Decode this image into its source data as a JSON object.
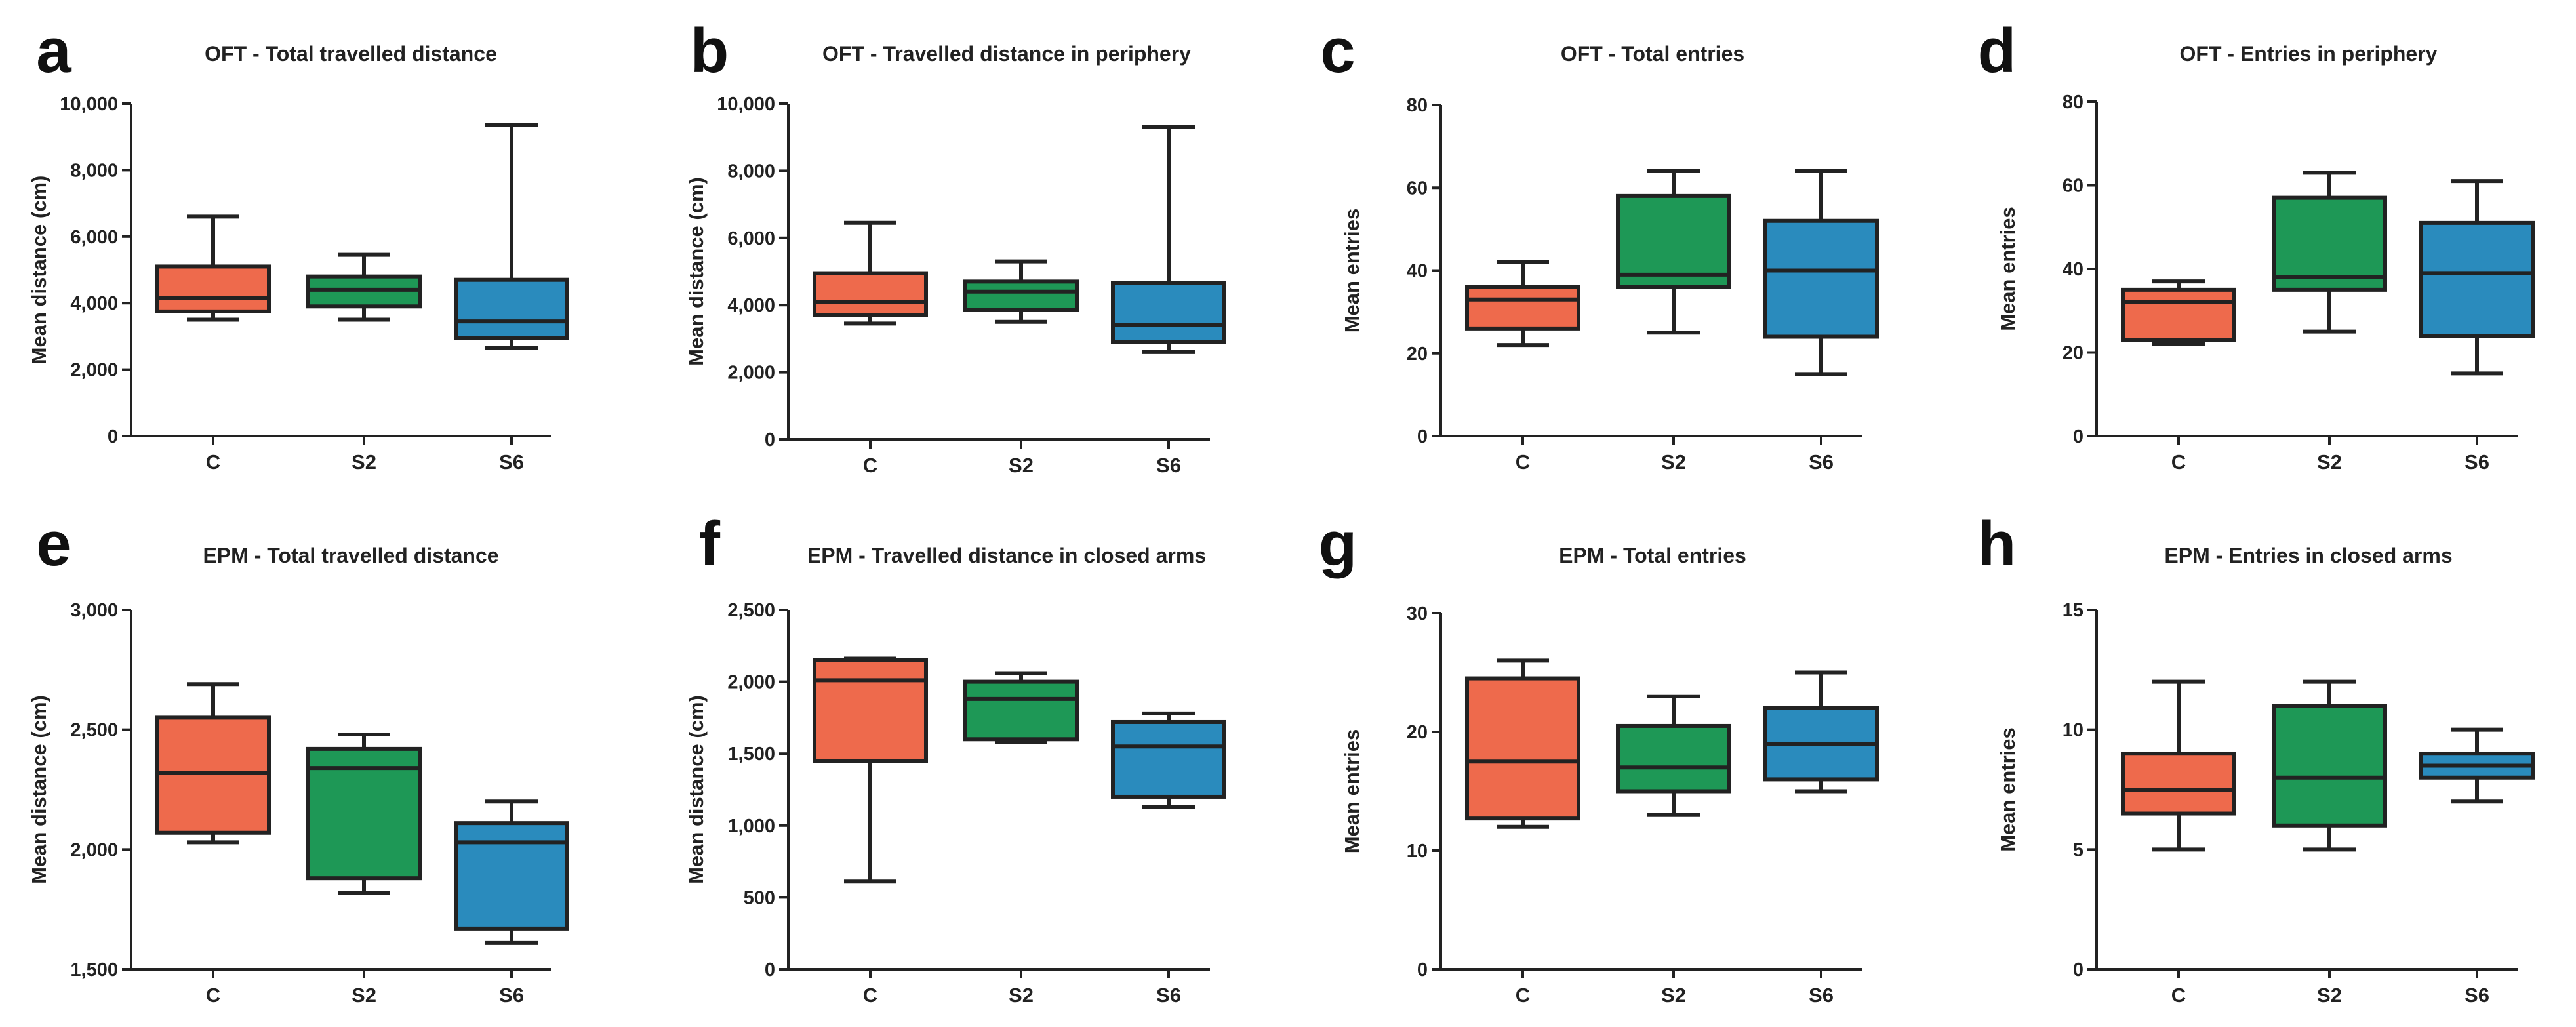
{
  "colors": {
    "C": "#ee6a4c",
    "S2": "#1e9856",
    "S6": "#2a8bbd"
  },
  "chart_data": [
    {
      "letter": "a",
      "title": "OFT - Total travelled distance",
      "type": "box",
      "ylabel": "Mean distance (cm)",
      "ylim": [
        0,
        10000
      ],
      "yticks": [
        0,
        2000,
        4000,
        6000,
        8000,
        10000
      ],
      "ytick_labels": [
        "0",
        "2,000",
        "4,000",
        "6,000",
        "8,000",
        "10,000"
      ],
      "categories": [
        "C",
        "S2",
        "S6"
      ],
      "boxes": [
        {
          "min": 3500,
          "q1": 3750,
          "median": 4150,
          "q3": 5100,
          "max": 6600
        },
        {
          "min": 3500,
          "q1": 3900,
          "median": 4400,
          "q3": 4800,
          "max": 5450
        },
        {
          "min": 2650,
          "q1": 2950,
          "median": 3450,
          "q3": 4700,
          "max": 9350
        }
      ]
    },
    {
      "letter": "b",
      "title": "OFT - Travelled distance in periphery",
      "type": "box",
      "ylabel": "Mean distance (cm)",
      "ylim": [
        0,
        10000
      ],
      "yticks": [
        0,
        2000,
        4000,
        6000,
        8000,
        10000
      ],
      "ytick_labels": [
        "0",
        "2,000",
        "4,000",
        "6,000",
        "8,000",
        "10,000"
      ],
      "categories": [
        "C",
        "S2",
        "S6"
      ],
      "boxes": [
        {
          "min": 3450,
          "q1": 3700,
          "median": 4100,
          "q3": 4950,
          "max": 6450
        },
        {
          "min": 3500,
          "q1": 3850,
          "median": 4400,
          "q3": 4700,
          "max": 5300
        },
        {
          "min": 2600,
          "q1": 2900,
          "median": 3400,
          "q3": 4650,
          "max": 9300
        }
      ]
    },
    {
      "letter": "c",
      "title": "OFT - Total entries",
      "type": "box",
      "ylabel": "Mean entries",
      "ylim": [
        0,
        80
      ],
      "yticks": [
        0,
        20,
        40,
        60,
        80
      ],
      "ytick_labels": [
        "0",
        "20",
        "40",
        "60",
        "80"
      ],
      "categories": [
        "C",
        "S2",
        "S6"
      ],
      "boxes": [
        {
          "min": 22,
          "q1": 26,
          "median": 33,
          "q3": 36,
          "max": 42
        },
        {
          "min": 25,
          "q1": 36,
          "median": 39,
          "q3": 58,
          "max": 64
        },
        {
          "min": 15,
          "q1": 24,
          "median": 40,
          "q3": 52,
          "max": 64
        }
      ]
    },
    {
      "letter": "d",
      "title": "OFT - Entries in periphery",
      "type": "box",
      "ylabel": "Mean entries",
      "ylim": [
        0,
        80
      ],
      "yticks": [
        0,
        20,
        40,
        60,
        80
      ],
      "ytick_labels": [
        "0",
        "20",
        "40",
        "60",
        "80"
      ],
      "categories": [
        "C",
        "S2",
        "S6"
      ],
      "boxes": [
        {
          "min": 22,
          "q1": 23,
          "median": 32,
          "q3": 35,
          "max": 37
        },
        {
          "min": 25,
          "q1": 35,
          "median": 38,
          "q3": 57,
          "max": 63
        },
        {
          "min": 15,
          "q1": 24,
          "median": 39,
          "q3": 51,
          "max": 61
        }
      ]
    },
    {
      "letter": "e",
      "title": "EPM - Total travelled distance",
      "type": "box",
      "ylabel": "Mean distance (cm)",
      "ylim": [
        1500,
        3000
      ],
      "yticks": [
        1500,
        2000,
        2500,
        3000
      ],
      "ytick_labels": [
        "1,500",
        "2,000",
        "2,500",
        "3,000"
      ],
      "categories": [
        "C",
        "S2",
        "S6"
      ],
      "boxes": [
        {
          "min": 2030,
          "q1": 2070,
          "median": 2320,
          "q3": 2550,
          "max": 2690
        },
        {
          "min": 1820,
          "q1": 1880,
          "median": 2340,
          "q3": 2420,
          "max": 2480
        },
        {
          "min": 1610,
          "q1": 1670,
          "median": 2030,
          "q3": 2110,
          "max": 2200
        }
      ]
    },
    {
      "letter": "f",
      "title": "EPM - Travelled distance in closed arms",
      "type": "box",
      "ylabel": "Mean distance (cm)",
      "ylim": [
        0,
        2500
      ],
      "yticks": [
        0,
        500,
        1000,
        1500,
        2000,
        2500
      ],
      "ytick_labels": [
        "0",
        "500",
        "1,000",
        "1,500",
        "2,000",
        "2,500"
      ],
      "categories": [
        "C",
        "S2",
        "S6"
      ],
      "boxes": [
        {
          "min": 610,
          "q1": 1450,
          "median": 2010,
          "q3": 2150,
          "max": 2160
        },
        {
          "min": 1580,
          "q1": 1600,
          "median": 1880,
          "q3": 2000,
          "max": 2060
        },
        {
          "min": 1130,
          "q1": 1200,
          "median": 1550,
          "q3": 1720,
          "max": 1780
        }
      ]
    },
    {
      "letter": "g",
      "title": "EPM - Total entries",
      "type": "box",
      "ylabel": "Mean entries",
      "ylim": [
        0,
        30
      ],
      "yticks": [
        0,
        10,
        20,
        30
      ],
      "ytick_labels": [
        "0",
        "10",
        "20",
        "30"
      ],
      "categories": [
        "C",
        "S2",
        "S6"
      ],
      "boxes": [
        {
          "min": 12,
          "q1": 12.7,
          "median": 17.5,
          "q3": 24.5,
          "max": 26
        },
        {
          "min": 13,
          "q1": 15,
          "median": 17,
          "q3": 20.5,
          "max": 23
        },
        {
          "min": 15,
          "q1": 16,
          "median": 19,
          "q3": 22,
          "max": 25
        }
      ]
    },
    {
      "letter": "h",
      "title": "EPM - Entries in closed arms",
      "type": "box",
      "ylabel": "Mean entries",
      "ylim": [
        0,
        15
      ],
      "yticks": [
        0,
        5,
        10,
        15
      ],
      "ytick_labels": [
        "0",
        "5",
        "10",
        "15"
      ],
      "categories": [
        "C",
        "S2",
        "S6"
      ],
      "boxes": [
        {
          "min": 5,
          "q1": 6.5,
          "median": 7.5,
          "q3": 9,
          "max": 12
        },
        {
          "min": 5,
          "q1": 6,
          "median": 8,
          "q3": 11,
          "max": 12
        },
        {
          "min": 7,
          "q1": 8,
          "median": 8.5,
          "q3": 9,
          "max": 10
        }
      ]
    }
  ]
}
